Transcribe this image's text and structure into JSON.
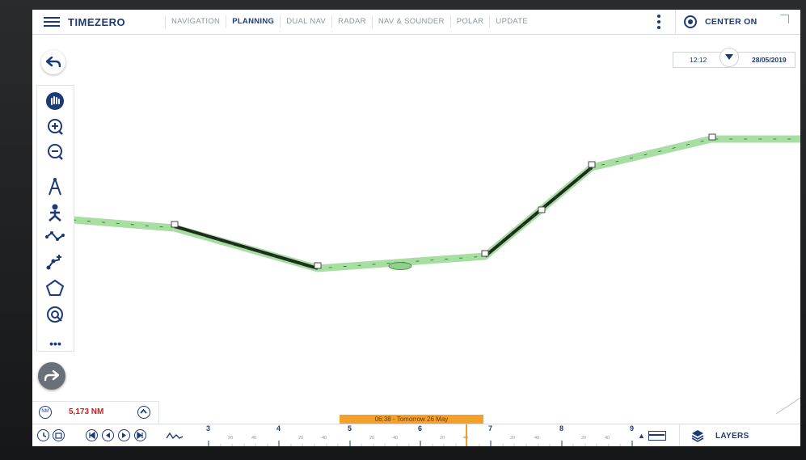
{
  "app": {
    "brand": "TIMEZERO"
  },
  "tabs": [
    {
      "label": "NAVIGATION",
      "active": false
    },
    {
      "label": "PLANNING",
      "active": true
    },
    {
      "label": "DUAL NAV",
      "active": false
    },
    {
      "label": "RADAR",
      "active": false
    },
    {
      "label": "NAV & SOUNDER",
      "active": false
    },
    {
      "label": "POLAR",
      "active": false
    },
    {
      "label": "UPDATE",
      "active": false
    }
  ],
  "header": {
    "center_on_label": "CENTER ON"
  },
  "clock": {
    "time": "12:12",
    "date": "28/05/2019"
  },
  "route": {
    "distance": "5,173 NM"
  },
  "timeline": {
    "current_label": "06:38 - Tomorrow 26 May",
    "major_ticks": [
      "3",
      "4",
      "5",
      "6",
      "7",
      "8",
      "9"
    ],
    "minor_ticks": [
      "20",
      "40",
      "20",
      "40",
      "20",
      "40",
      "20",
      "40",
      "20",
      "40",
      "20",
      "40"
    ]
  },
  "layers": {
    "label": "LAYERS"
  },
  "colors": {
    "accent": "#1d3a78",
    "route_fill": "#9ed99a",
    "alert": "#cc1f1f",
    "timeline_marker": "#f3a12a"
  },
  "icons": [
    "hamburger-icon",
    "more-vertical-icon",
    "center-on-icon",
    "back-arrow-icon",
    "pan-hand-icon",
    "zoom-in-icon",
    "zoom-out-icon",
    "compass-icon",
    "person-tool-icon",
    "route-icon",
    "waypoint-icon",
    "polygon-icon",
    "target-icon",
    "forward-arrow-icon",
    "layers-icon"
  ]
}
